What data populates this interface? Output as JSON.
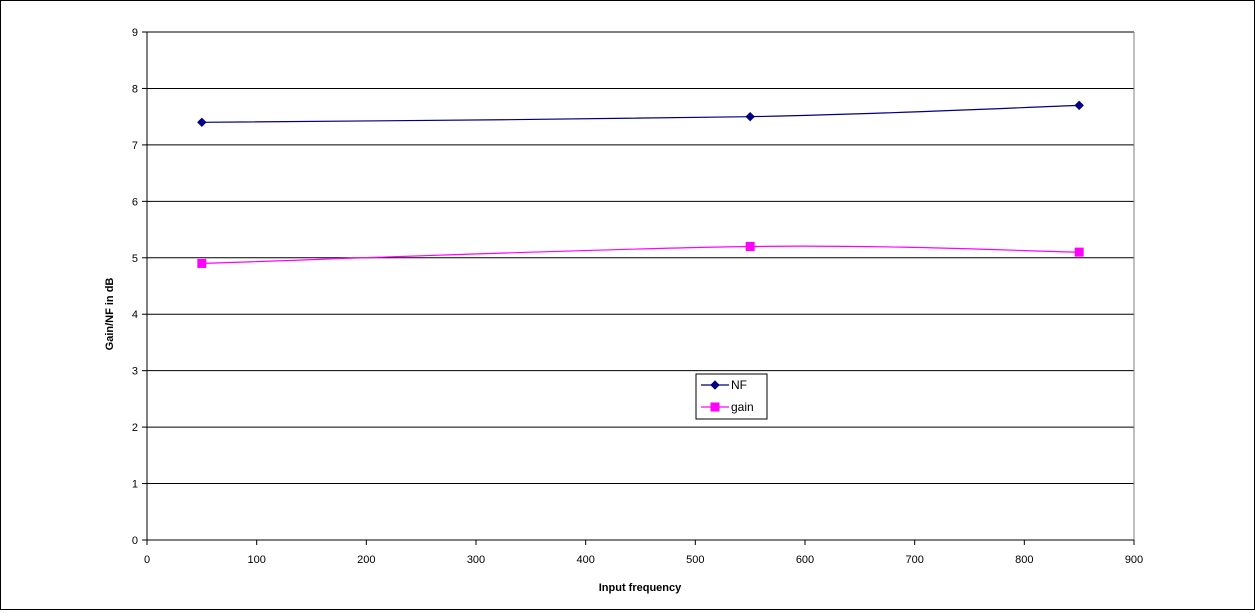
{
  "chart_data": {
    "type": "line",
    "xlabel": "Input frequency",
    "ylabel": "Gain/NF in dB",
    "xlim": [
      0,
      900
    ],
    "ylim": [
      0,
      9
    ],
    "x_ticks": [
      0,
      100,
      200,
      300,
      400,
      500,
      600,
      700,
      800,
      900
    ],
    "y_ticks": [
      0,
      1,
      2,
      3,
      4,
      5,
      6,
      7,
      8,
      9
    ],
    "grid": "horizontal",
    "legend_position": "center",
    "smoothed": true,
    "series": [
      {
        "name": "NF",
        "x": [
          50,
          550,
          850
        ],
        "values": [
          7.4,
          7.5,
          7.7
        ],
        "color": "#000080",
        "marker": "diamond"
      },
      {
        "name": "gain",
        "x": [
          50,
          550,
          850
        ],
        "values": [
          4.9,
          5.2,
          5.1
        ],
        "color": "#ff00ff",
        "marker": "square"
      }
    ]
  }
}
